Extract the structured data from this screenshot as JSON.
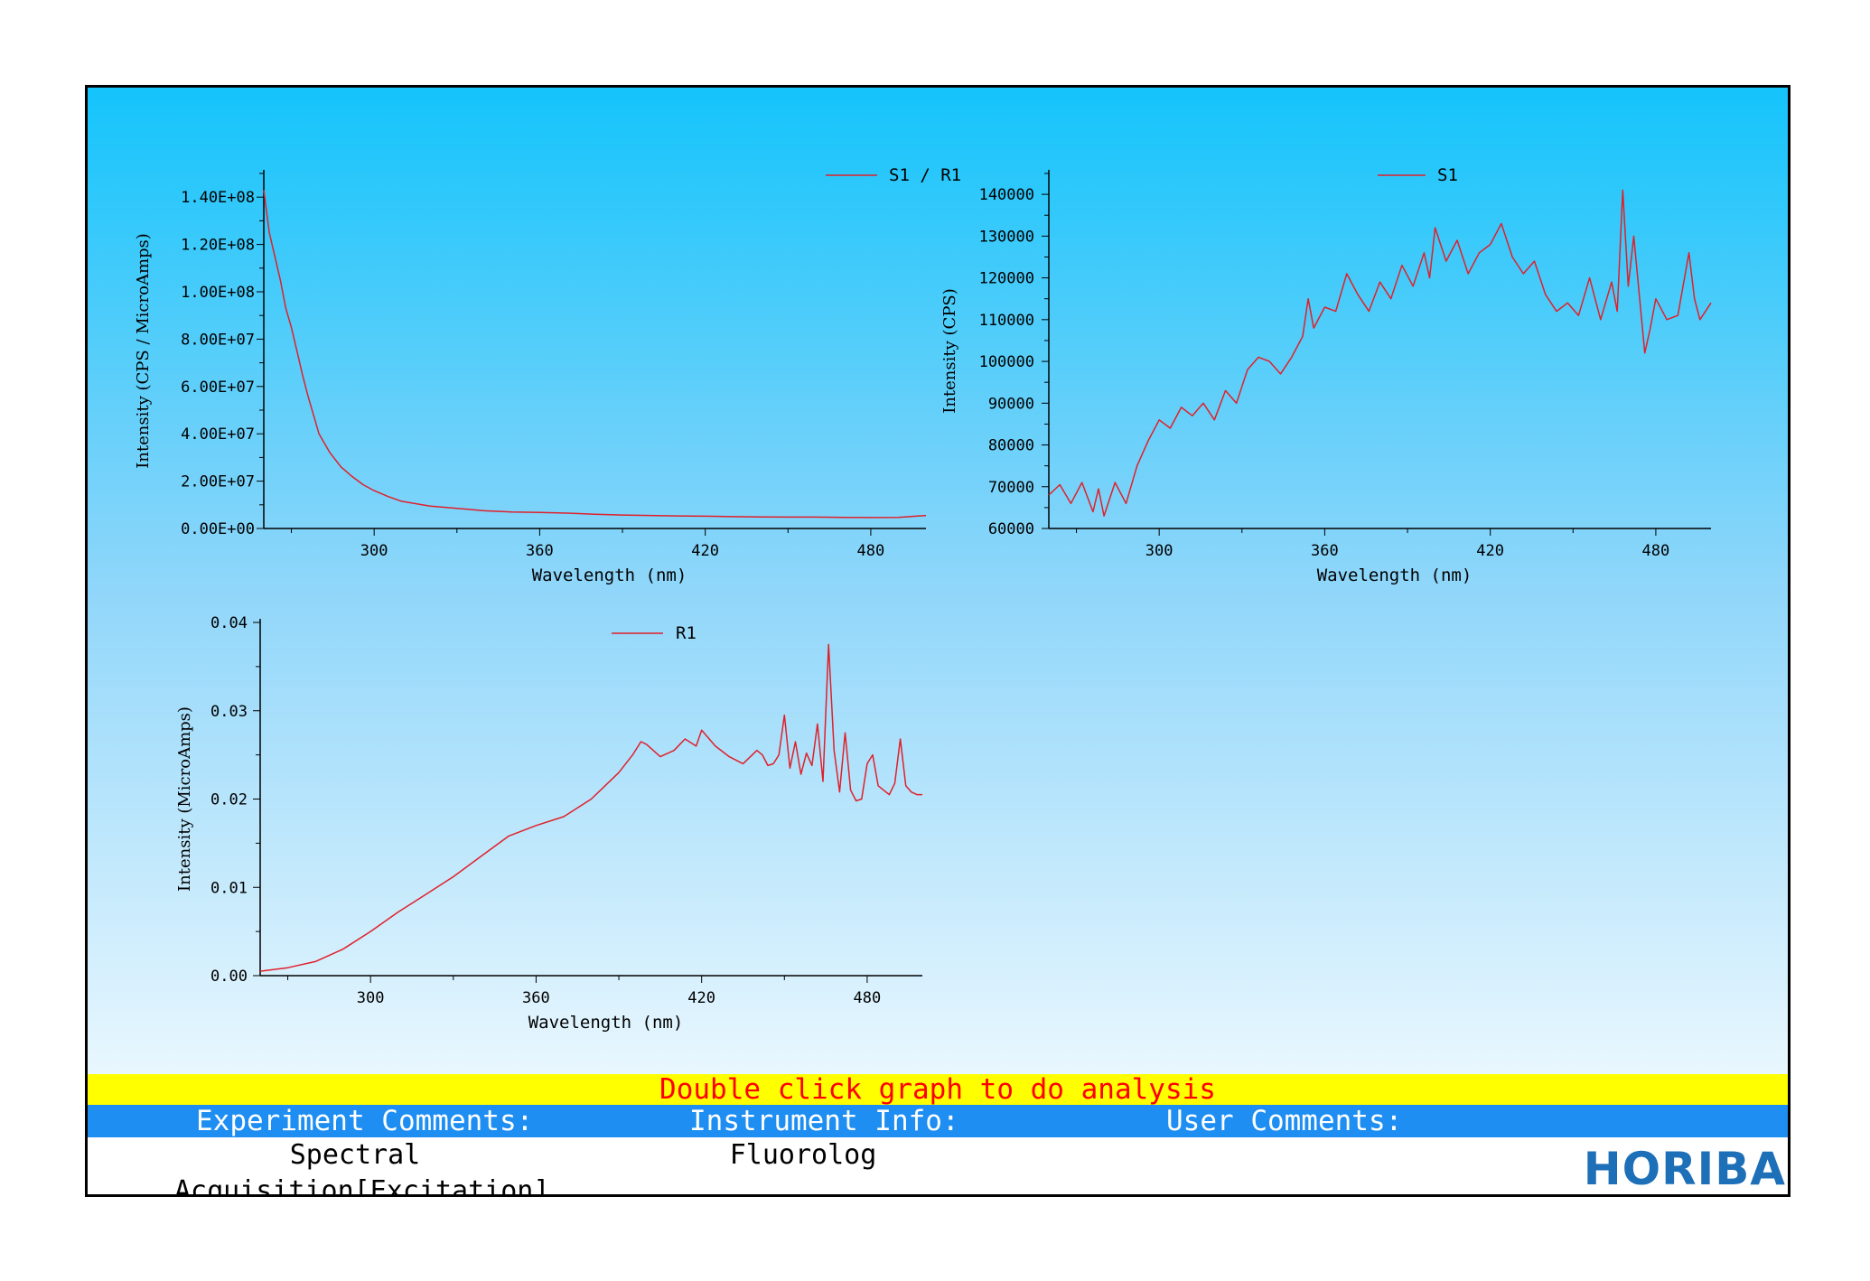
{
  "footer": {
    "banner": "Double click graph to do analysis",
    "experiment_label": "Experiment Comments:",
    "instrument_label": "Instrument Info:",
    "user_label": "User Comments:",
    "experiment_value": "Spectral\nAcquisition[Excitation]",
    "instrument_value": "Fluorolog",
    "user_value": "",
    "logo_text": "HORIBA"
  },
  "colors": {
    "series": "#e0202a",
    "banner_bg": "#ffff00",
    "banner_text": "#ff0000",
    "header_bg": "#1e8ef2",
    "logo": "#1d6fb8"
  },
  "chart_data": [
    {
      "type": "line",
      "xlabel": "Wavelength (nm)",
      "ylabel": "Intensity (CPS / MicroAmps)",
      "xlim": [
        260,
        500
      ],
      "ylim": [
        0,
        150000000
      ],
      "xticks": [
        300,
        360,
        420,
        480
      ],
      "yticks": [
        0,
        20000000,
        40000000,
        60000000,
        80000000,
        100000000,
        120000000,
        140000000
      ],
      "ytick_labels": [
        "0.00E+00",
        "2.00E+07",
        "4.00E+07",
        "6.00E+07",
        "8.00E+07",
        "1.00E+08",
        "1.20E+08",
        "1.40E+08"
      ],
      "legend": "top-right",
      "series": [
        {
          "name": "S1 / R1",
          "x": [
            260,
            262,
            264,
            266,
            268,
            270,
            272,
            274,
            276,
            278,
            280,
            284,
            288,
            292,
            296,
            300,
            305,
            310,
            320,
            330,
            340,
            350,
            360,
            370,
            380,
            390,
            400,
            410,
            420,
            430,
            440,
            450,
            460,
            470,
            480,
            490,
            500
          ],
          "values": [
            143000000,
            125000000,
            115000000,
            105000000,
            93000000,
            85000000,
            75000000,
            65000000,
            56000000,
            48000000,
            40000000,
            32000000,
            26000000,
            22000000,
            18500000,
            16000000,
            13500000,
            11500000,
            9500000,
            8500000,
            7500000,
            7000000,
            6800000,
            6500000,
            6000000,
            5700000,
            5500000,
            5300000,
            5200000,
            5000000,
            4900000,
            4800000,
            4800000,
            4700000,
            4600000,
            4700000,
            5500000
          ]
        }
      ]
    },
    {
      "type": "line",
      "xlabel": "Wavelength (nm)",
      "ylabel": "Intensity (CPS)",
      "xlim": [
        260,
        500
      ],
      "ylim": [
        60000,
        145000
      ],
      "xticks": [
        300,
        360,
        420,
        480
      ],
      "yticks": [
        60000,
        70000,
        80000,
        90000,
        100000,
        110000,
        120000,
        130000,
        140000
      ],
      "legend": "top-right",
      "series": [
        {
          "name": "S1",
          "x": [
            260,
            264,
            268,
            272,
            276,
            278,
            280,
            284,
            288,
            292,
            296,
            300,
            304,
            308,
            312,
            316,
            320,
            324,
            328,
            332,
            336,
            340,
            344,
            348,
            352,
            354,
            356,
            360,
            364,
            368,
            372,
            376,
            380,
            384,
            388,
            392,
            396,
            398,
            400,
            404,
            408,
            412,
            416,
            420,
            424,
            428,
            432,
            436,
            440,
            444,
            448,
            452,
            456,
            460,
            464,
            466,
            468,
            470,
            472,
            476,
            478,
            480,
            484,
            488,
            492,
            494,
            496,
            500
          ],
          "values": [
            68000,
            70500,
            66000,
            71000,
            64000,
            69500,
            63000,
            71000,
            66000,
            75000,
            81000,
            86000,
            84000,
            89000,
            87000,
            90000,
            86000,
            93000,
            90000,
            98000,
            101000,
            100000,
            97000,
            101000,
            106000,
            115000,
            108000,
            113000,
            112000,
            121000,
            116000,
            112000,
            119000,
            115000,
            123000,
            118000,
            126000,
            120000,
            132000,
            124000,
            129000,
            121000,
            126000,
            128000,
            133000,
            125000,
            121000,
            124000,
            116000,
            112000,
            114000,
            111000,
            120000,
            110000,
            119000,
            112000,
            141000,
            118000,
            130000,
            102000,
            108000,
            115000,
            110000,
            111000,
            126000,
            115000,
            110000,
            114000
          ]
        }
      ]
    },
    {
      "type": "line",
      "xlabel": "Wavelength (nm)",
      "ylabel": "Intensity (MicroAmps)",
      "xlim": [
        260,
        500
      ],
      "ylim": [
        0,
        0.04
      ],
      "xticks": [
        300,
        360,
        420,
        480
      ],
      "yticks": [
        0,
        0.01,
        0.02,
        0.03,
        0.04
      ],
      "ytick_labels": [
        "0.00",
        "0.01",
        "0.02",
        "0.03",
        "0.04"
      ],
      "legend": "top-right",
      "series": [
        {
          "name": "R1",
          "x": [
            260,
            270,
            280,
            290,
            300,
            310,
            320,
            330,
            340,
            350,
            360,
            370,
            380,
            385,
            390,
            395,
            398,
            400,
            405,
            410,
            414,
            418,
            420,
            425,
            430,
            435,
            440,
            442,
            444,
            446,
            448,
            450,
            452,
            454,
            456,
            458,
            460,
            462,
            464,
            466,
            468,
            470,
            472,
            474,
            476,
            478,
            480,
            482,
            484,
            486,
            488,
            490,
            492,
            494,
            496,
            498,
            500
          ],
          "values": [
            0.0005,
            0.0009,
            0.0016,
            0.003,
            0.005,
            0.0072,
            0.0092,
            0.0112,
            0.0135,
            0.0158,
            0.017,
            0.018,
            0.02,
            0.0215,
            0.023,
            0.025,
            0.0265,
            0.0262,
            0.0248,
            0.0255,
            0.0268,
            0.026,
            0.0278,
            0.026,
            0.0248,
            0.024,
            0.0255,
            0.025,
            0.0238,
            0.024,
            0.025,
            0.0295,
            0.0235,
            0.0265,
            0.0228,
            0.0252,
            0.0238,
            0.0285,
            0.022,
            0.0375,
            0.0255,
            0.0208,
            0.0275,
            0.021,
            0.0198,
            0.02,
            0.024,
            0.025,
            0.0215,
            0.021,
            0.0205,
            0.0218,
            0.0268,
            0.0215,
            0.0208,
            0.0205,
            0.0205
          ]
        }
      ]
    }
  ]
}
